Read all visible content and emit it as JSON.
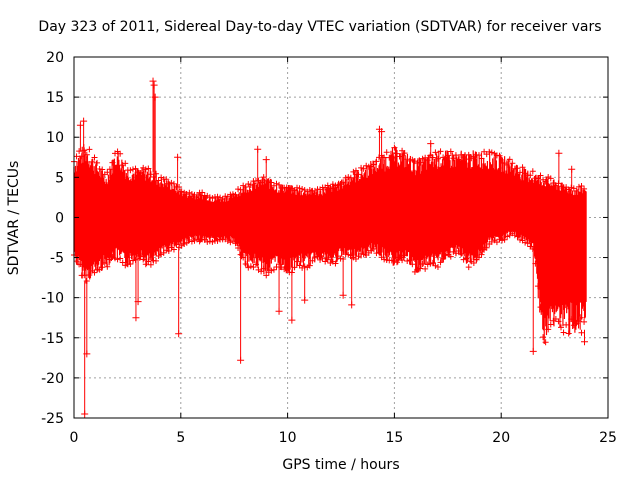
{
  "chart_data": {
    "type": "scatter",
    "title": "Day 323 of 2011, Sidereal Day-to-day VTEC variation (SDTVAR) for receiver vars",
    "xlabel": "GPS time / hours",
    "ylabel": "SDTVAR / TECUs",
    "xlim": [
      0,
      25
    ],
    "ylim": [
      -25,
      20
    ],
    "xticks": [
      0,
      5,
      10,
      15,
      20,
      25
    ],
    "yticks": [
      -25,
      -20,
      -15,
      -10,
      -5,
      0,
      5,
      10,
      15,
      20
    ],
    "grid": true,
    "marker": "+",
    "color": "#ff0000",
    "series": [
      {
        "name": "SDTVAR",
        "envelope": {
          "x": [
            0,
            0.5,
            1,
            1.5,
            2,
            2.5,
            3,
            3.5,
            4,
            4.5,
            5,
            5.5,
            6,
            6.5,
            7,
            7.5,
            8,
            8.5,
            9,
            9.5,
            10,
            10.5,
            11,
            11.5,
            12,
            12.5,
            13,
            13.5,
            14,
            14.5,
            15,
            15.5,
            16,
            16.5,
            17,
            17.5,
            18,
            18.5,
            19,
            19.5,
            20,
            20.5,
            21,
            21.5,
            22,
            22.5,
            23,
            23.5,
            24
          ],
          "upper": [
            7,
            9,
            7,
            5,
            8.5,
            6,
            6,
            6,
            5,
            4.5,
            3.5,
            3,
            3,
            2.5,
            2.5,
            3,
            4,
            4.5,
            5,
            4,
            4,
            3.5,
            3.5,
            3.5,
            4,
            4.5,
            5.5,
            6,
            7,
            7.5,
            8.5,
            8,
            7,
            7.5,
            8,
            8,
            8,
            8,
            8,
            8,
            7.5,
            7,
            6,
            5.5,
            5,
            4.5,
            4,
            3.5,
            4
          ],
          "lower": [
            -5,
            -8,
            -7,
            -6,
            -5,
            -6,
            -5,
            -6,
            -5,
            -4,
            -3.5,
            -3,
            -3,
            -3,
            -3,
            -3,
            -6,
            -6,
            -7,
            -6,
            -7,
            -6,
            -6,
            -5,
            -6,
            -5,
            -5,
            -5,
            -4,
            -5,
            -6,
            -5,
            -7,
            -6,
            -6,
            -5,
            -4.5,
            -6,
            -5,
            -3,
            -3,
            -2,
            -3,
            -4,
            -16,
            -13,
            -14,
            -14,
            -14
          ]
        },
        "outliers": {
          "x": [
            0.5,
            0.3,
            0.45,
            0.6,
            3.7,
            3.75,
            3.8,
            2.9,
            3.0,
            4.9,
            7.8,
            8.6,
            9.0,
            9.6,
            10.2,
            10.8,
            12.6,
            13.0,
            14.3,
            14.4,
            16.7,
            21.5,
            22.7,
            23.3,
            23.5,
            23.7,
            23.9,
            4.85
          ],
          "y": [
            -24.5,
            11.5,
            12,
            -17,
            17,
            16.5,
            15,
            -12.5,
            -10.5,
            -14.5,
            -17.8,
            8.5,
            7.2,
            -11.7,
            -12.8,
            -10.3,
            -9.7,
            -10.9,
            11,
            10.7,
            9.2,
            -16.7,
            8,
            6,
            -13.2,
            -12.5,
            -15.5,
            7.5
          ]
        }
      }
    ]
  }
}
